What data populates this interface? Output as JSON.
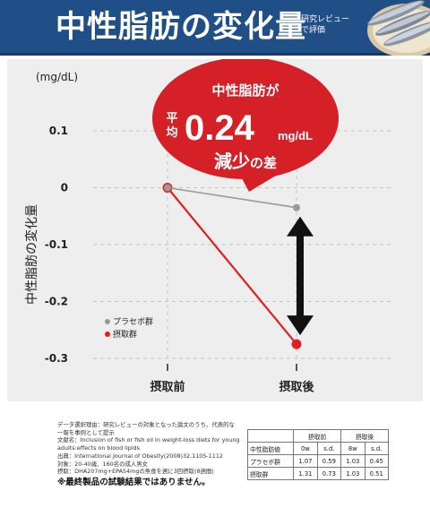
{
  "header": {
    "title": "中性脂肪の変化量",
    "subtitle_lines": [
      "研究レビュー",
      "で評価"
    ]
  },
  "colors": {
    "header_bg": "#1f4f86",
    "placebo": "#9a9a9a",
    "intake": "#e02020",
    "callout": "#d62027",
    "arrow": "#111111"
  },
  "chart_data": {
    "type": "line",
    "unit_label": "(mg/dL)",
    "ylabel": "中性脂肪の変化量",
    "categories": [
      "摂取前",
      "摂取後"
    ],
    "ylim": [
      -0.3,
      0.1
    ],
    "yticks": [
      0.1,
      0,
      -0.1,
      -0.2,
      -0.3
    ],
    "ytick_labels": [
      "0.1",
      "0",
      "-0.1",
      "-0.2",
      "-0.3"
    ],
    "grid": true,
    "legend_position": "bottom-left",
    "series": [
      {
        "name": "プラセボ群",
        "values": [
          0,
          -0.035
        ],
        "color": "#9a9a9a"
      },
      {
        "name": "摂取群",
        "values": [
          0,
          -0.275
        ],
        "color": "#e02020"
      }
    ],
    "arrow_range": [
      -0.035,
      -0.275
    ],
    "callout": {
      "line1": "中性脂肪が",
      "prefix_1": "平",
      "prefix_2": "均",
      "value": "0.24",
      "unit": "mg/dL",
      "line3_a": "減少",
      "line3_b": "の差"
    }
  },
  "notes": {
    "lines": [
      "データ選択理由：研究レビューの対象となった論文のうち、代表的な",
      "一報を事例として提示",
      "文献名：Inclusion of fish or fish oil in weight-loss diets for young",
      "adults:effects on blood lipids",
      "出典：International Journal of Obesity(2008)32,1105-1112",
      "対象：20-40歳、160名の成人男女",
      "摂取：DHA207mg+EPA54mgの魚食を週に3回摂取(8週間)"
    ],
    "warning": "※最終製品の試験結果ではありません。"
  },
  "table": {
    "header_row1": [
      "",
      "摂取前",
      "",
      "摂取後",
      ""
    ],
    "header_row2": [
      "中性脂肪値",
      "0w",
      "s.d.",
      "8w",
      "s.d."
    ],
    "rows": [
      [
        "プラセボ群",
        "1.07",
        "0.59",
        "1.03",
        "0.45"
      ],
      [
        "摂取群",
        "1.31",
        "0.73",
        "1.03",
        "0.51"
      ]
    ]
  }
}
